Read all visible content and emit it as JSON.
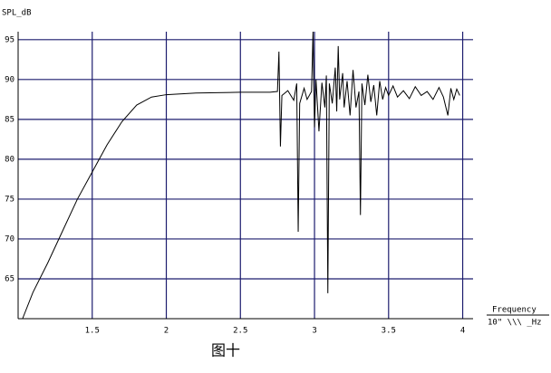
{
  "chart_data": {
    "type": "line",
    "y_label": "SPL_dB",
    "x_label": "Frequency",
    "x_unit": "10\" \\\\\\ _Hz",
    "caption": "图十",
    "xlim": [
      1.0,
      4.07
    ],
    "ylim": [
      60,
      96
    ],
    "xticks": [
      1.5,
      2,
      2.5,
      3,
      3.5,
      4
    ],
    "yticks": [
      65,
      70,
      75,
      80,
      85,
      90,
      95
    ],
    "grid": true,
    "series": [
      {
        "color": "#000000",
        "x": [
          1.03,
          1.1,
          1.2,
          1.3,
          1.4,
          1.5,
          1.6,
          1.7,
          1.8,
          1.9,
          2.0,
          2.2,
          2.5,
          2.7,
          2.75,
          2.76,
          2.77,
          2.78,
          2.82,
          2.86,
          2.88,
          2.89,
          2.9,
          2.93,
          2.95,
          2.98,
          2.99,
          3.0,
          3.01,
          3.03,
          3.05,
          3.07,
          3.08,
          3.09,
          3.1,
          3.12,
          3.14,
          3.15,
          3.16,
          3.17,
          3.19,
          3.2,
          3.22,
          3.24,
          3.26,
          3.28,
          3.3,
          3.31,
          3.32,
          3.34,
          3.36,
          3.38,
          3.4,
          3.42,
          3.44,
          3.46,
          3.48,
          3.5,
          3.53,
          3.56,
          3.6,
          3.64,
          3.68,
          3.72,
          3.76,
          3.8,
          3.84,
          3.87,
          3.9,
          3.92,
          3.94,
          3.96,
          3.98
        ],
        "values": [
          60,
          63.3,
          67,
          71,
          75,
          78.4,
          81.8,
          84.7,
          86.8,
          87.8,
          88.1,
          88.3,
          88.4,
          88.4,
          88.5,
          93.5,
          81.6,
          88,
          88.6,
          87.4,
          89.5,
          70.9,
          87,
          88.9,
          87.5,
          88.5,
          96,
          84,
          90,
          83.5,
          89.6,
          86.5,
          90.5,
          63.2,
          89.5,
          87,
          91.5,
          86,
          94.2,
          87.5,
          90.8,
          86.5,
          89.8,
          85.5,
          91.2,
          86.5,
          88.5,
          73,
          89.5,
          86.8,
          90.6,
          87.2,
          89.3,
          85.5,
          89.8,
          87.5,
          89,
          88,
          89.2,
          87.8,
          88.6,
          87.6,
          89.1,
          88,
          88.5,
          87.5,
          89,
          87.8,
          85.5,
          88.9,
          87.5,
          88.8,
          88
        ]
      }
    ]
  }
}
